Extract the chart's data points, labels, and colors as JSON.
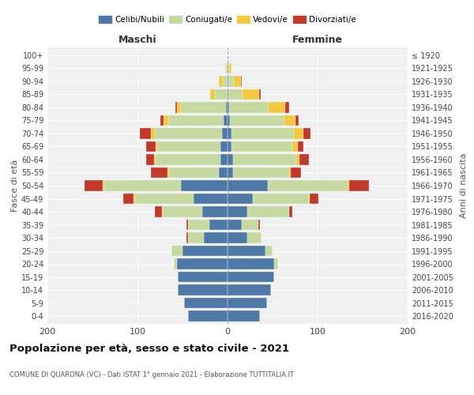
{
  "age_groups": [
    "0-4",
    "5-9",
    "10-14",
    "15-19",
    "20-24",
    "25-29",
    "30-34",
    "35-39",
    "40-44",
    "45-49",
    "50-54",
    "55-59",
    "60-64",
    "65-69",
    "70-74",
    "75-79",
    "80-84",
    "85-89",
    "90-94",
    "95-99",
    "100+"
  ],
  "birth_years": [
    "2016-2020",
    "2011-2015",
    "2006-2010",
    "2001-2005",
    "1996-2000",
    "1991-1995",
    "1986-1990",
    "1981-1985",
    "1976-1980",
    "1971-1975",
    "1966-1970",
    "1961-1965",
    "1956-1960",
    "1951-1955",
    "1946-1950",
    "1941-1945",
    "1936-1940",
    "1931-1935",
    "1926-1930",
    "1921-1925",
    "≤ 1920"
  ],
  "male": {
    "celibi": [
      44,
      48,
      55,
      55,
      56,
      50,
      26,
      20,
      28,
      38,
      52,
      10,
      8,
      8,
      6,
      4,
      2,
      0,
      0,
      0,
      0
    ],
    "coniugati": [
      0,
      0,
      0,
      0,
      4,
      12,
      18,
      24,
      44,
      65,
      85,
      55,
      72,
      70,
      75,
      62,
      50,
      14,
      5,
      2,
      0
    ],
    "vedovi": [
      0,
      0,
      0,
      0,
      0,
      0,
      0,
      0,
      1,
      1,
      2,
      2,
      2,
      2,
      4,
      5,
      4,
      5,
      5,
      1,
      0
    ],
    "divorziati": [
      0,
      0,
      0,
      0,
      0,
      0,
      2,
      2,
      8,
      12,
      20,
      18,
      8,
      10,
      12,
      4,
      2,
      0,
      0,
      0,
      0
    ]
  },
  "female": {
    "nubili": [
      36,
      44,
      48,
      52,
      52,
      42,
      22,
      16,
      22,
      28,
      45,
      6,
      6,
      4,
      4,
      3,
      2,
      1,
      1,
      0,
      0
    ],
    "coniugate": [
      0,
      0,
      0,
      0,
      4,
      8,
      16,
      18,
      46,
      62,
      88,
      62,
      70,
      68,
      70,
      60,
      44,
      16,
      6,
      2,
      0
    ],
    "vedove": [
      0,
      0,
      0,
      0,
      0,
      0,
      0,
      0,
      0,
      1,
      2,
      2,
      4,
      6,
      10,
      12,
      18,
      18,
      8,
      2,
      0
    ],
    "divorziate": [
      0,
      0,
      0,
      0,
      0,
      0,
      0,
      2,
      4,
      10,
      22,
      12,
      10,
      6,
      8,
      4,
      4,
      2,
      1,
      0,
      0
    ]
  },
  "colors": {
    "celibi": "#4e79a7",
    "coniugati": "#c5d9a0",
    "vedovi": "#f5c842",
    "divorziati": "#c0392b"
  },
  "title": "Popolazione per età, sesso e stato civile - 2021",
  "subtitle": "COMUNE DI QUARONA (VC) - Dati ISTAT 1° gennaio 2021 - Elaborazione TUTTITALIA.IT",
  "xlabel_left": "Maschi",
  "xlabel_right": "Femmine",
  "ylabel_left": "Fasce di età",
  "ylabel_right": "Anni di nascita",
  "xlim": 200,
  "legend_labels": [
    "Celibi/Nubili",
    "Coniugati/e",
    "Vedovi/e",
    "Divorziati/e"
  ],
  "bg_color": "#f0f0f0"
}
